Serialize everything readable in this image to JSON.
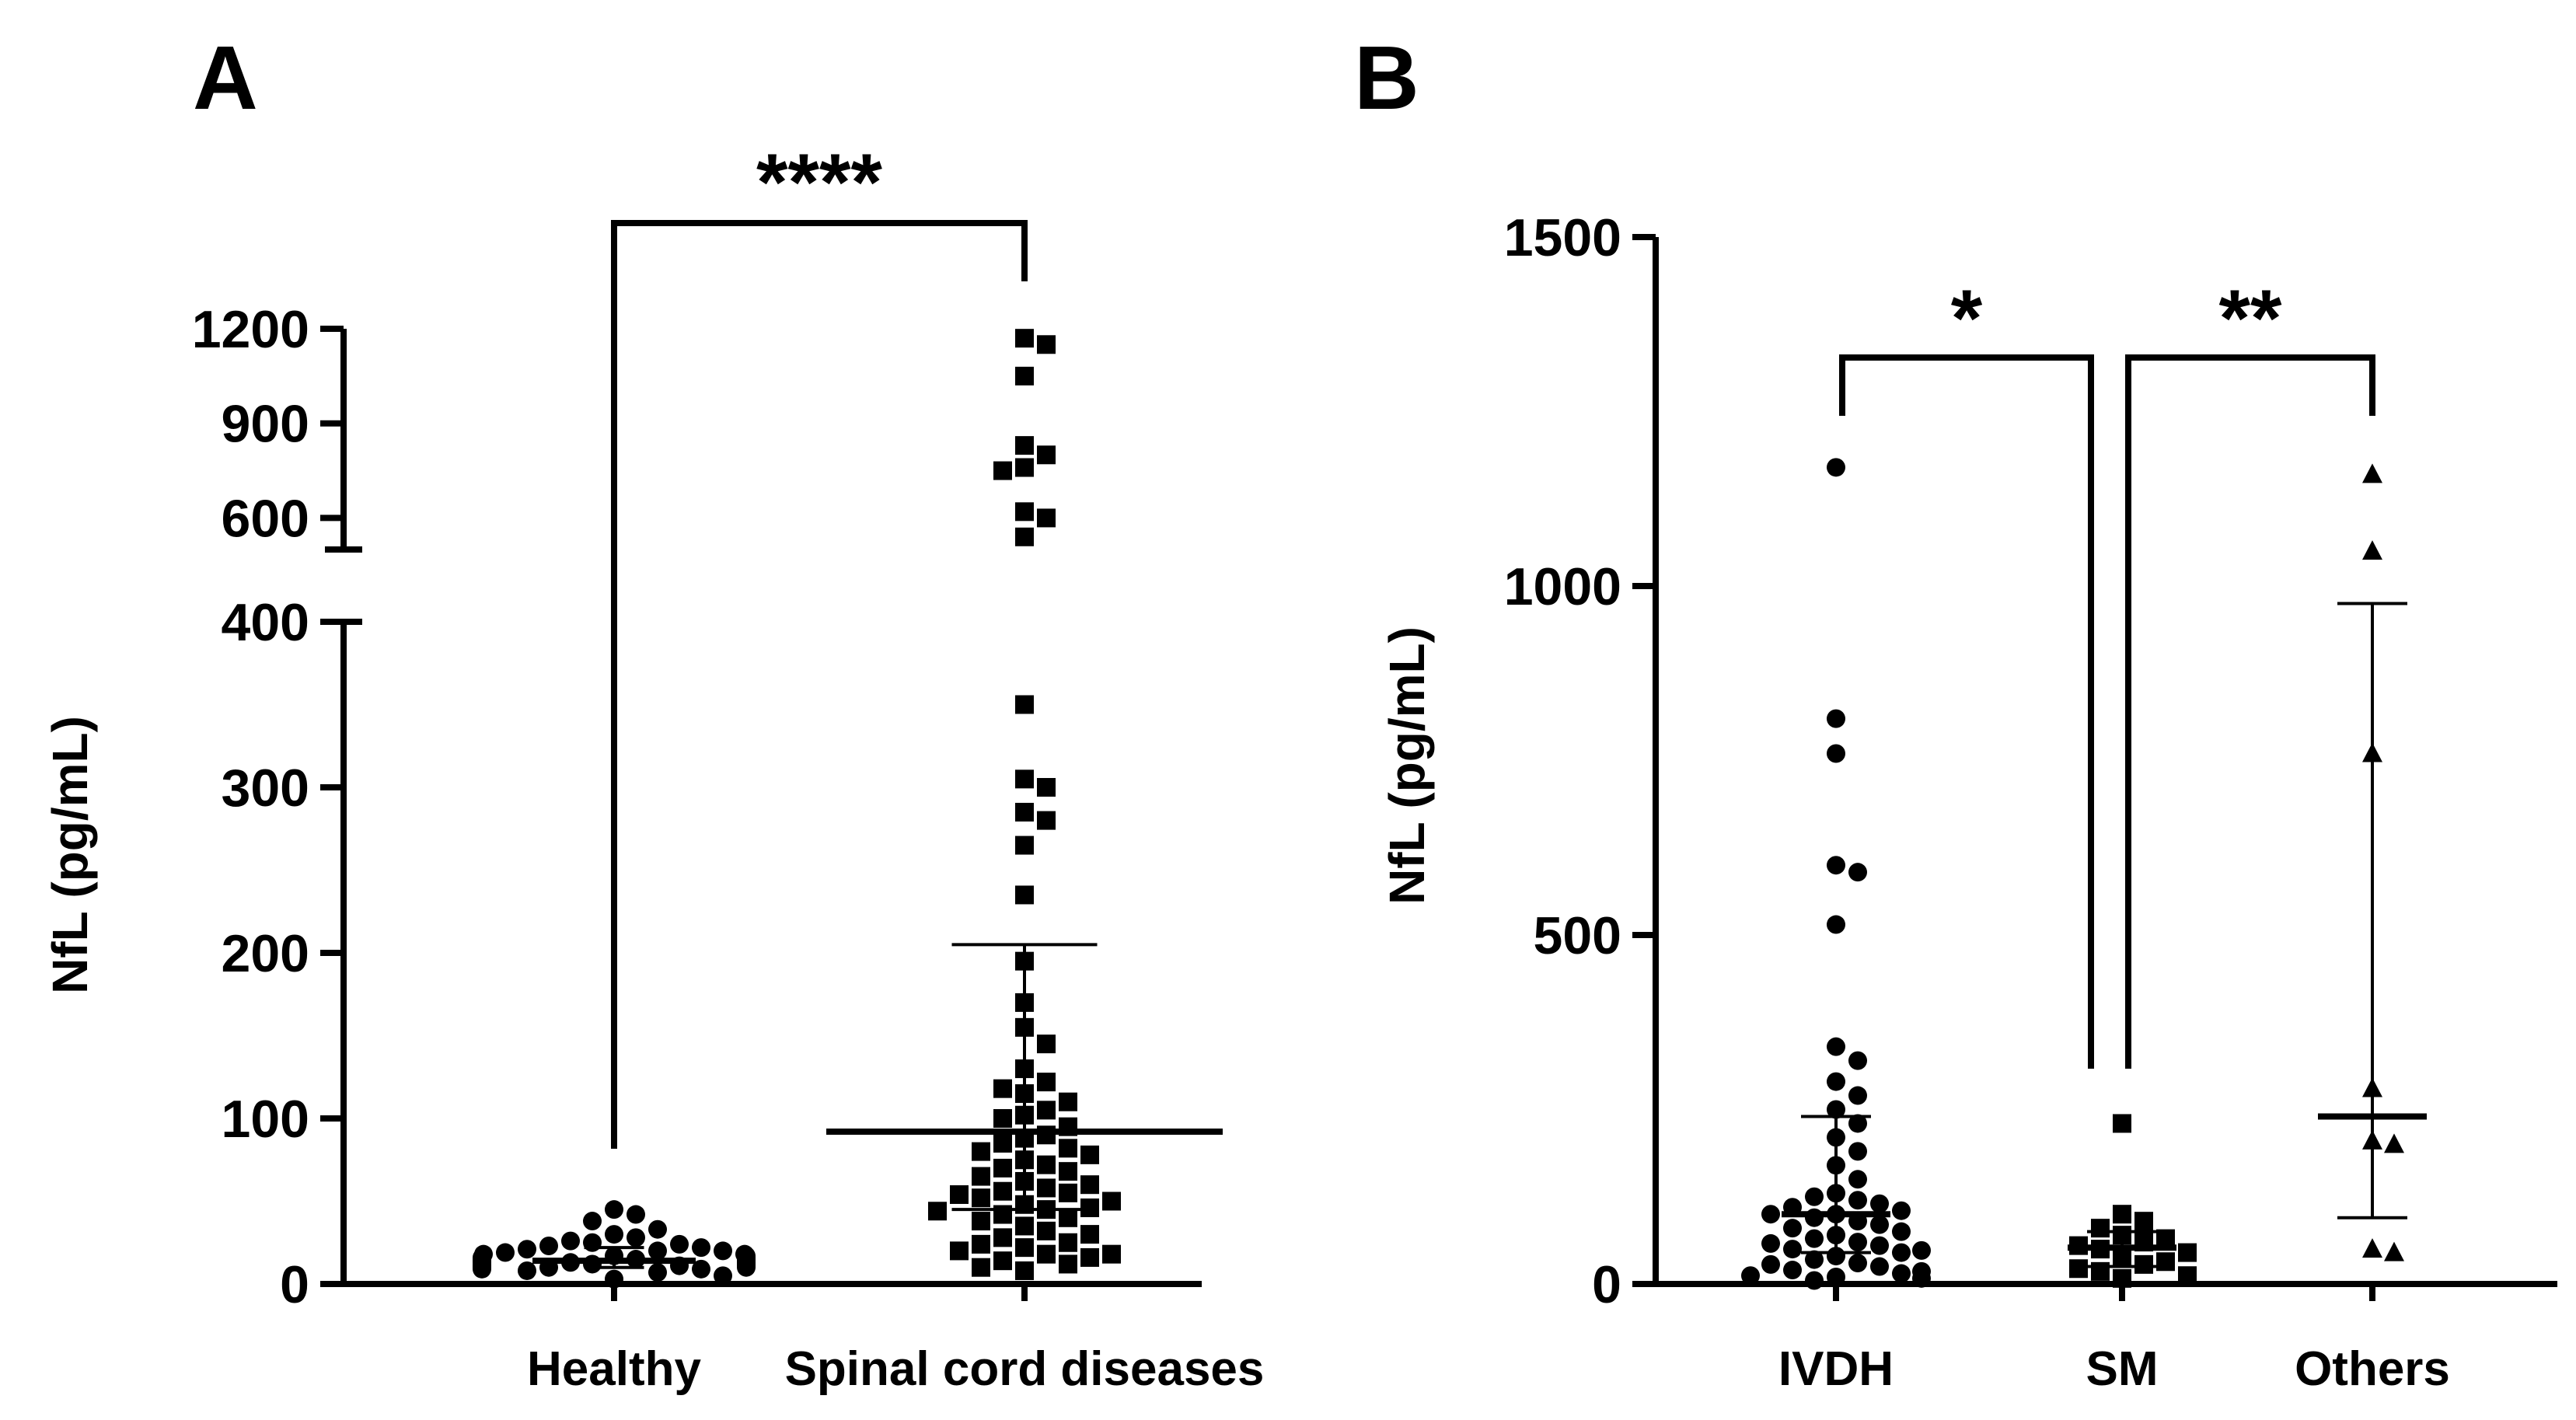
{
  "panels": {
    "a": {
      "label": "A"
    },
    "b": {
      "label": "B"
    }
  },
  "chart_data": [
    {
      "panel": "A",
      "type": "scatter",
      "title": "",
      "xlabel": "",
      "ylabel": "NfL (pg/mL)",
      "categories": [
        "Healthy",
        "Spinal cord diseases"
      ],
      "axis_break": {
        "lower_range": [
          0,
          400
        ],
        "upper_range": [
          500,
          1200
        ]
      },
      "yticks": [
        {
          "value": 0,
          "label": "0"
        },
        {
          "value": 100,
          "label": "100"
        },
        {
          "value": 200,
          "label": "200"
        },
        {
          "value": 300,
          "label": "300"
        },
        {
          "value": 400,
          "label": "400"
        },
        {
          "value": 600,
          "label": "600"
        },
        {
          "value": 900,
          "label": "900"
        },
        {
          "value": 1200,
          "label": "1200"
        }
      ],
      "series": [
        {
          "name": "Healthy",
          "marker": "circle",
          "median": 14,
          "iqr": [
            10,
            22
          ],
          "values": [
            3,
            5,
            7,
            8,
            9,
            9,
            10,
            10,
            10,
            11,
            11,
            11,
            12,
            12,
            12,
            12,
            13,
            13,
            13,
            14,
            14,
            14,
            15,
            15,
            15,
            16,
            16,
            17,
            17,
            18,
            18,
            19,
            20,
            20,
            21,
            22,
            23,
            24,
            25,
            26,
            28,
            30,
            33,
            38,
            42,
            45
          ]
        },
        {
          "name": "Spinal cord diseases",
          "marker": "square",
          "median": 92,
          "iqr": [
            45,
            205
          ],
          "values": [
            8,
            10,
            12,
            14,
            16,
            18,
            18,
            20,
            22,
            24,
            25,
            28,
            30,
            32,
            35,
            38,
            40,
            42,
            44,
            45,
            46,
            48,
            50,
            52,
            54,
            55,
            56,
            58,
            60,
            62,
            65,
            68,
            70,
            72,
            75,
            78,
            80,
            82,
            85,
            88,
            90,
            95,
            100,
            102,
            105,
            110,
            115,
            118,
            122,
            130,
            145,
            155,
            170,
            195,
            235,
            265,
            280,
            285,
            300,
            305,
            350,
            540,
            600,
            620,
            750,
            760,
            800,
            830,
            1050,
            1150,
            1170
          ]
        }
      ],
      "significance": [
        {
          "between": [
            "Healthy",
            "Spinal cord diseases"
          ],
          "label": "****"
        }
      ]
    },
    {
      "panel": "B",
      "type": "scatter",
      "title": "",
      "xlabel": "",
      "ylabel": "NfL (pg/mL)",
      "categories": [
        "IVDH",
        "SM",
        "Others"
      ],
      "ylim": [
        0,
        1500
      ],
      "yticks": [
        {
          "value": 0,
          "label": "0"
        },
        {
          "value": 500,
          "label": "500"
        },
        {
          "value": 1000,
          "label": "1000"
        },
        {
          "value": 1500,
          "label": "1500"
        }
      ],
      "series": [
        {
          "name": "IVDH",
          "marker": "circle",
          "median": 100,
          "iqr": [
            45,
            240
          ],
          "values": [
            5,
            8,
            10,
            12,
            15,
            18,
            20,
            25,
            28,
            30,
            35,
            40,
            45,
            48,
            50,
            55,
            58,
            60,
            65,
            70,
            75,
            80,
            85,
            90,
            95,
            100,
            100,
            105,
            110,
            115,
            120,
            125,
            130,
            150,
            170,
            190,
            210,
            230,
            250,
            270,
            290,
            320,
            340,
            515,
            590,
            600,
            760,
            810,
            1170
          ]
        },
        {
          "name": "SM",
          "marker": "square",
          "median": 52,
          "iqr": [
            25,
            75
          ],
          "values": [
            8,
            12,
            18,
            22,
            28,
            32,
            38,
            45,
            50,
            55,
            60,
            65,
            70,
            80,
            90,
            100,
            230
          ]
        },
        {
          "name": "Others",
          "marker": "triangle",
          "median": 240,
          "iqr": [
            95,
            975
          ],
          "values": [
            45,
            50,
            200,
            205,
            280,
            760,
            1050,
            1160
          ]
        }
      ],
      "significance": [
        {
          "between": [
            "IVDH",
            "SM"
          ],
          "label": "*"
        },
        {
          "between": [
            "SM",
            "Others"
          ],
          "label": "**"
        }
      ]
    }
  ]
}
